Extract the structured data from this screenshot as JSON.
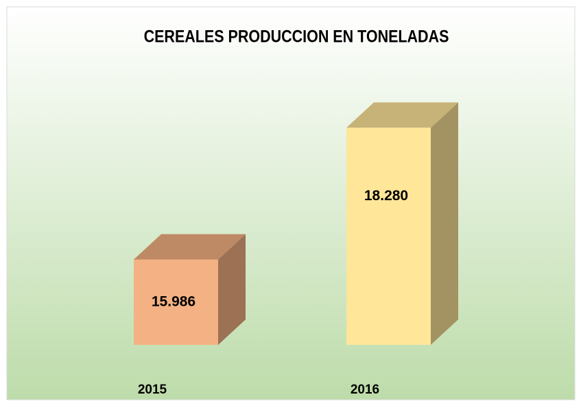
{
  "chart_data": {
    "type": "bar3d",
    "title": "CEREALES PRODUCCION EN TONELADAS",
    "categories": [
      "2015",
      "2016"
    ],
    "values": [
      15986,
      18280
    ],
    "value_labels": [
      "15.986",
      "18.280"
    ],
    "colors": [
      "#f4b183",
      "#ffe699"
    ],
    "ylim": [
      14500,
      19000
    ]
  }
}
